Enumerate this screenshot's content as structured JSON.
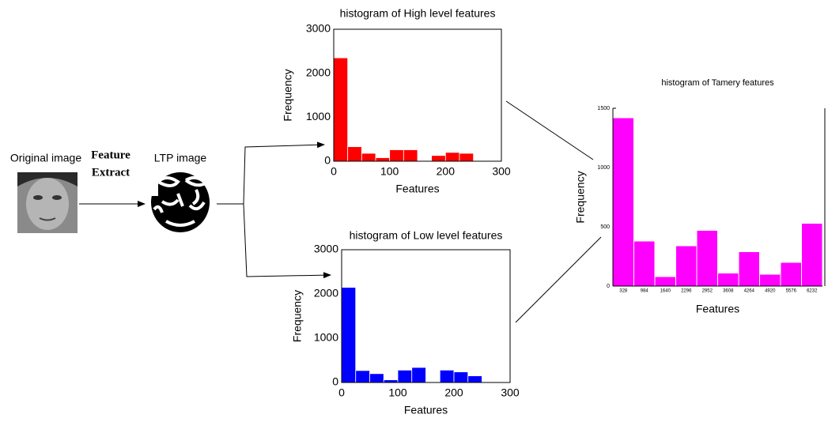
{
  "labels": {
    "original": "Original image",
    "extract_1": "Feature",
    "extract_2": "Extract",
    "ltp": "LTP image"
  },
  "chart_data": [
    {
      "type": "histogram",
      "title": "histogram of High level features",
      "xlabel": "Features",
      "ylabel": "Frequency",
      "color": "#ff0000",
      "bins": [
        0,
        25,
        50,
        75,
        100,
        125,
        150,
        175,
        200,
        225,
        250
      ],
      "values": [
        2350,
        330,
        180,
        80,
        260,
        260,
        0,
        130,
        200,
        180
      ],
      "xlim": [
        0,
        300
      ],
      "xticks": [
        0,
        100,
        200,
        300
      ],
      "ylim": [
        0,
        3000
      ],
      "yticks": [
        0,
        1000,
        2000,
        3000
      ]
    },
    {
      "type": "histogram",
      "title": "histogram of Low level features",
      "xlabel": "Features",
      "ylabel": "Frequency",
      "color": "#0000ff",
      "bins": [
        0,
        25,
        50,
        75,
        100,
        125,
        150,
        175,
        200,
        225,
        250
      ],
      "values": [
        2150,
        270,
        200,
        60,
        280,
        340,
        0,
        280,
        240,
        150
      ],
      "xlim": [
        0,
        300
      ],
      "xticks": [
        0,
        100,
        200,
        300
      ],
      "ylim": [
        0,
        3000
      ],
      "yticks": [
        0,
        1000,
        2000,
        3000
      ]
    },
    {
      "type": "bar",
      "title": "histogram of Tamery features",
      "xlabel": "Features",
      "ylabel": "Frequency",
      "color": "#ff00ff",
      "categories": [
        "328",
        "984",
        "1640",
        "2296",
        "2952",
        "3608",
        "4264",
        "4920",
        "5576",
        "6232"
      ],
      "values": [
        1420,
        380,
        80,
        340,
        470,
        110,
        290,
        100,
        200,
        530
      ],
      "ylim": [
        0,
        1500
      ],
      "yticks": [
        0,
        500,
        1000,
        1500
      ]
    }
  ]
}
